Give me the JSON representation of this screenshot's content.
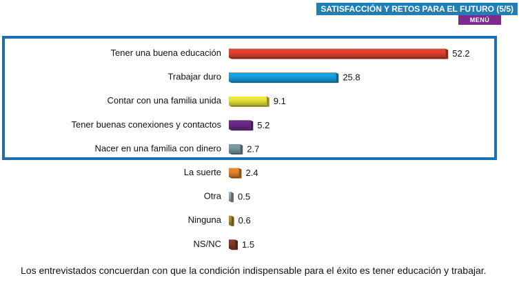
{
  "header": {
    "title": "SATISFACCIÓN Y RETOS PARA EL FUTURO (5/5)",
    "menu_label": "MENÚ",
    "title_bg": "#1f7fb6",
    "menu_bg": "#7c2c8c"
  },
  "highlight_color": "#1a6fb4",
  "chart_data": {
    "type": "bar",
    "orientation": "horizontal",
    "categories": [
      "Tener una buena educación",
      "Trabajar duro",
      "Contar con una familia unida",
      "Tener buenas conexiones y contactos",
      "Nacer en una familia con dinero",
      "La suerte",
      "Otra",
      "Ninguna",
      "NS/NC"
    ],
    "values": [
      52.2,
      25.8,
      9.1,
      5.2,
      2.7,
      2.4,
      0.5,
      0.6,
      1.5
    ],
    "value_labels": [
      "52.2",
      "25.8",
      "9.1",
      "5.2",
      "2.7",
      "2.4",
      "0.5",
      "0.6",
      "1.5"
    ],
    "colors": [
      "#e8442f",
      "#1aa7e4",
      "#f2ec3c",
      "#6f2b8f",
      "#7f9ea4",
      "#f08a2c",
      "#9fb4c8",
      "#b0962a",
      "#8b3a2a"
    ],
    "highlighted_count": 5,
    "title": "",
    "xlabel": "",
    "ylabel": "",
    "grid": false,
    "legend": "none"
  },
  "caption": "Los entrevistados concuerdan con que la condición indispensable para el éxito es  tener educación y trabajar."
}
